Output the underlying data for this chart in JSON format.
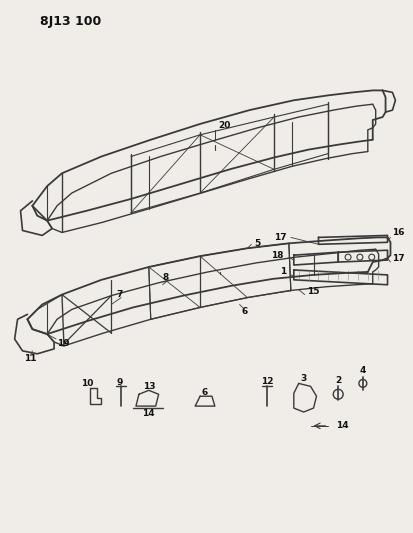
{
  "title": "8J13 100",
  "bg_color": "#f0ede8",
  "line_color": "#3a3a3a",
  "text_color": "#111111",
  "fig_width": 4.13,
  "fig_height": 5.33,
  "dpi": 100
}
